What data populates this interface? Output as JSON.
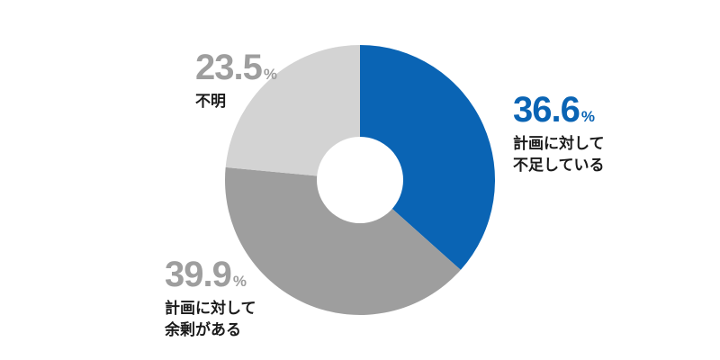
{
  "chart_data": {
    "type": "pie",
    "donut": true,
    "title": "",
    "slices": [
      {
        "label_lines": [
          "計画に対して",
          "不足している"
        ],
        "value": 36.6,
        "display": "36.6",
        "unit": "%",
        "color": "#0a64b4"
      },
      {
        "label_lines": [
          "計画に対して",
          "余剰がある"
        ],
        "value": 39.9,
        "display": "39.9",
        "unit": "%",
        "color": "#9e9e9e"
      },
      {
        "label_lines": [
          "不明"
        ],
        "value": 23.5,
        "display": "23.5",
        "unit": "%",
        "color": "#d3d3d3"
      }
    ],
    "start_angle": "12 o'clock",
    "direction": "clockwise",
    "legend": "none"
  }
}
